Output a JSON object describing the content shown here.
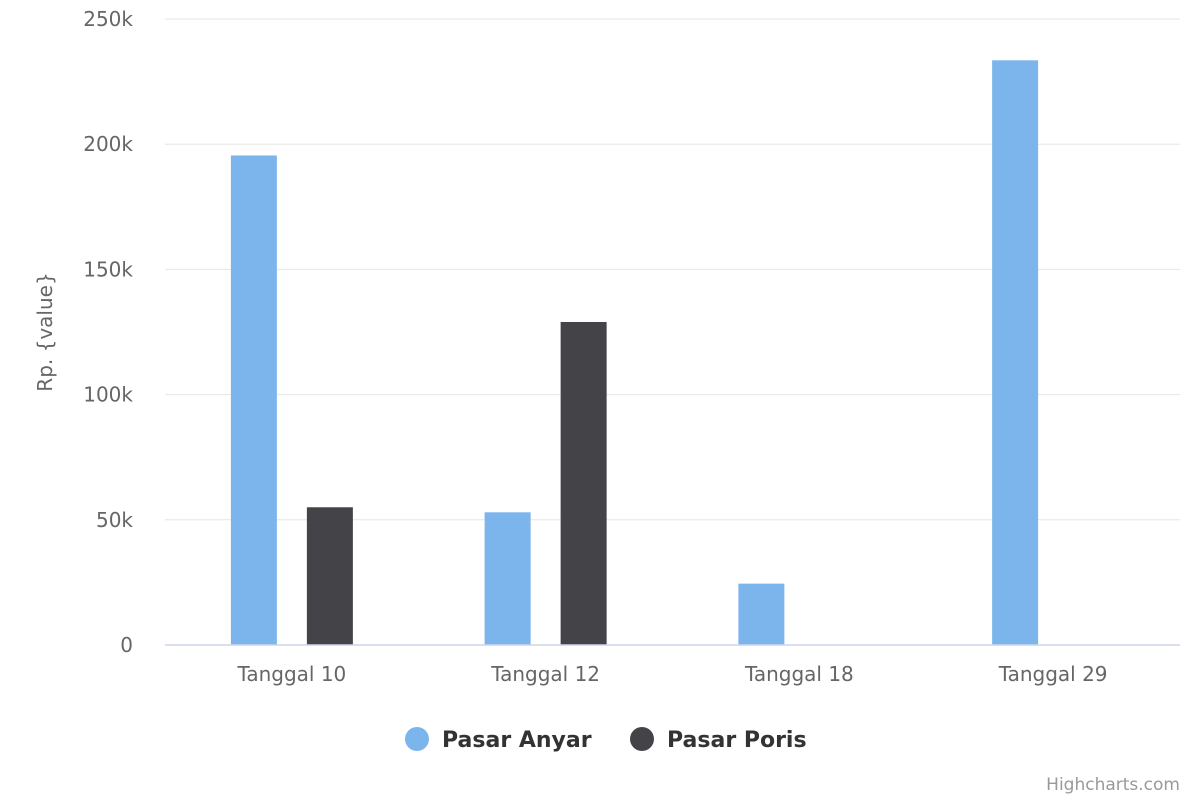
{
  "chart_data": {
    "type": "bar",
    "title": "",
    "xlabel": "",
    "ylabel": "Rp. {value}",
    "ylim": [
      0,
      250000
    ],
    "yticks": [
      0,
      50000,
      100000,
      150000,
      200000,
      250000
    ],
    "ytick_labels": [
      "0",
      "50k",
      "100k",
      "150k",
      "200k",
      "250k"
    ],
    "grid": true,
    "legend_position": "bottom-center",
    "categories": [
      "Tanggal 10",
      "Tanggal 12",
      "Tanggal 18",
      "Tanggal 29"
    ],
    "series": [
      {
        "name": "Pasar Anyar",
        "color": "#7cb5ec",
        "values": [
          195500,
          53000,
          24500,
          233500
        ]
      },
      {
        "name": "Pasar Poris",
        "color": "#434348",
        "values": [
          55000,
          129000,
          null,
          null
        ]
      }
    ],
    "credits": "Highcharts.com"
  }
}
